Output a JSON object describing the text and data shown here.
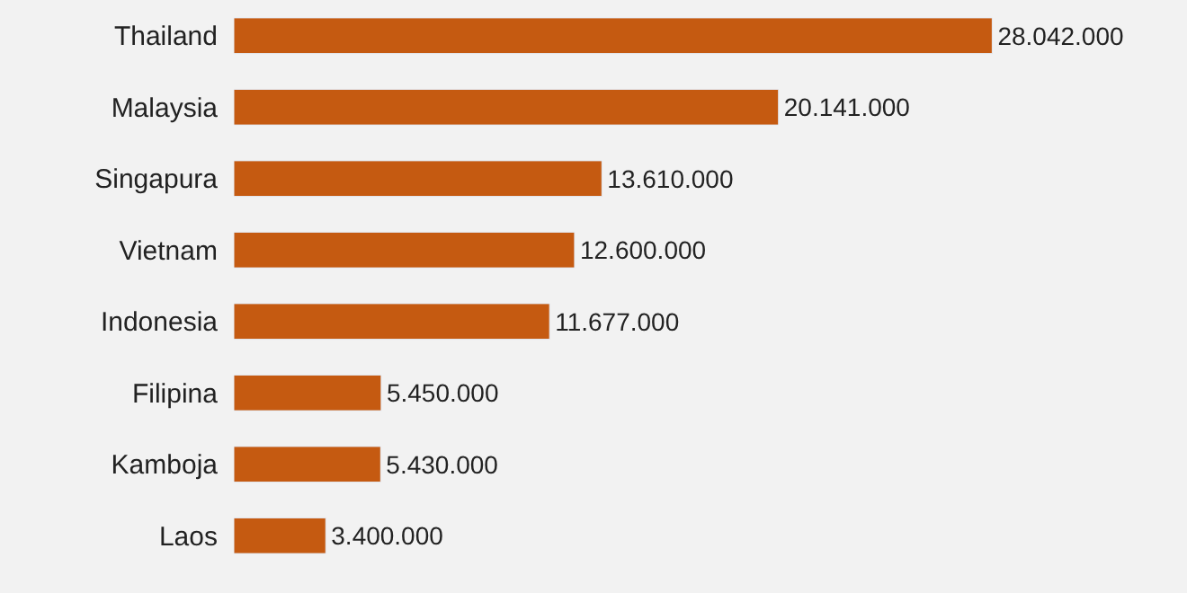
{
  "chart_data": {
    "type": "bar",
    "orientation": "horizontal",
    "categories": [
      "Thailand",
      "Malaysia",
      "Singapura",
      "Vietnam",
      "Indonesia",
      "Filipina",
      "Kamboja",
      "Laos"
    ],
    "values": [
      28042000,
      20141000,
      13610000,
      12600000,
      11677000,
      5450000,
      5430000,
      3400000
    ],
    "value_labels": [
      "28.042.000",
      "20.141.000",
      "13.610.000",
      "12.600.000",
      "11.677.000",
      "5.450.000",
      "5.430.000",
      "3.400.000"
    ],
    "color": "#c55a11",
    "grid": false,
    "legend": false
  }
}
